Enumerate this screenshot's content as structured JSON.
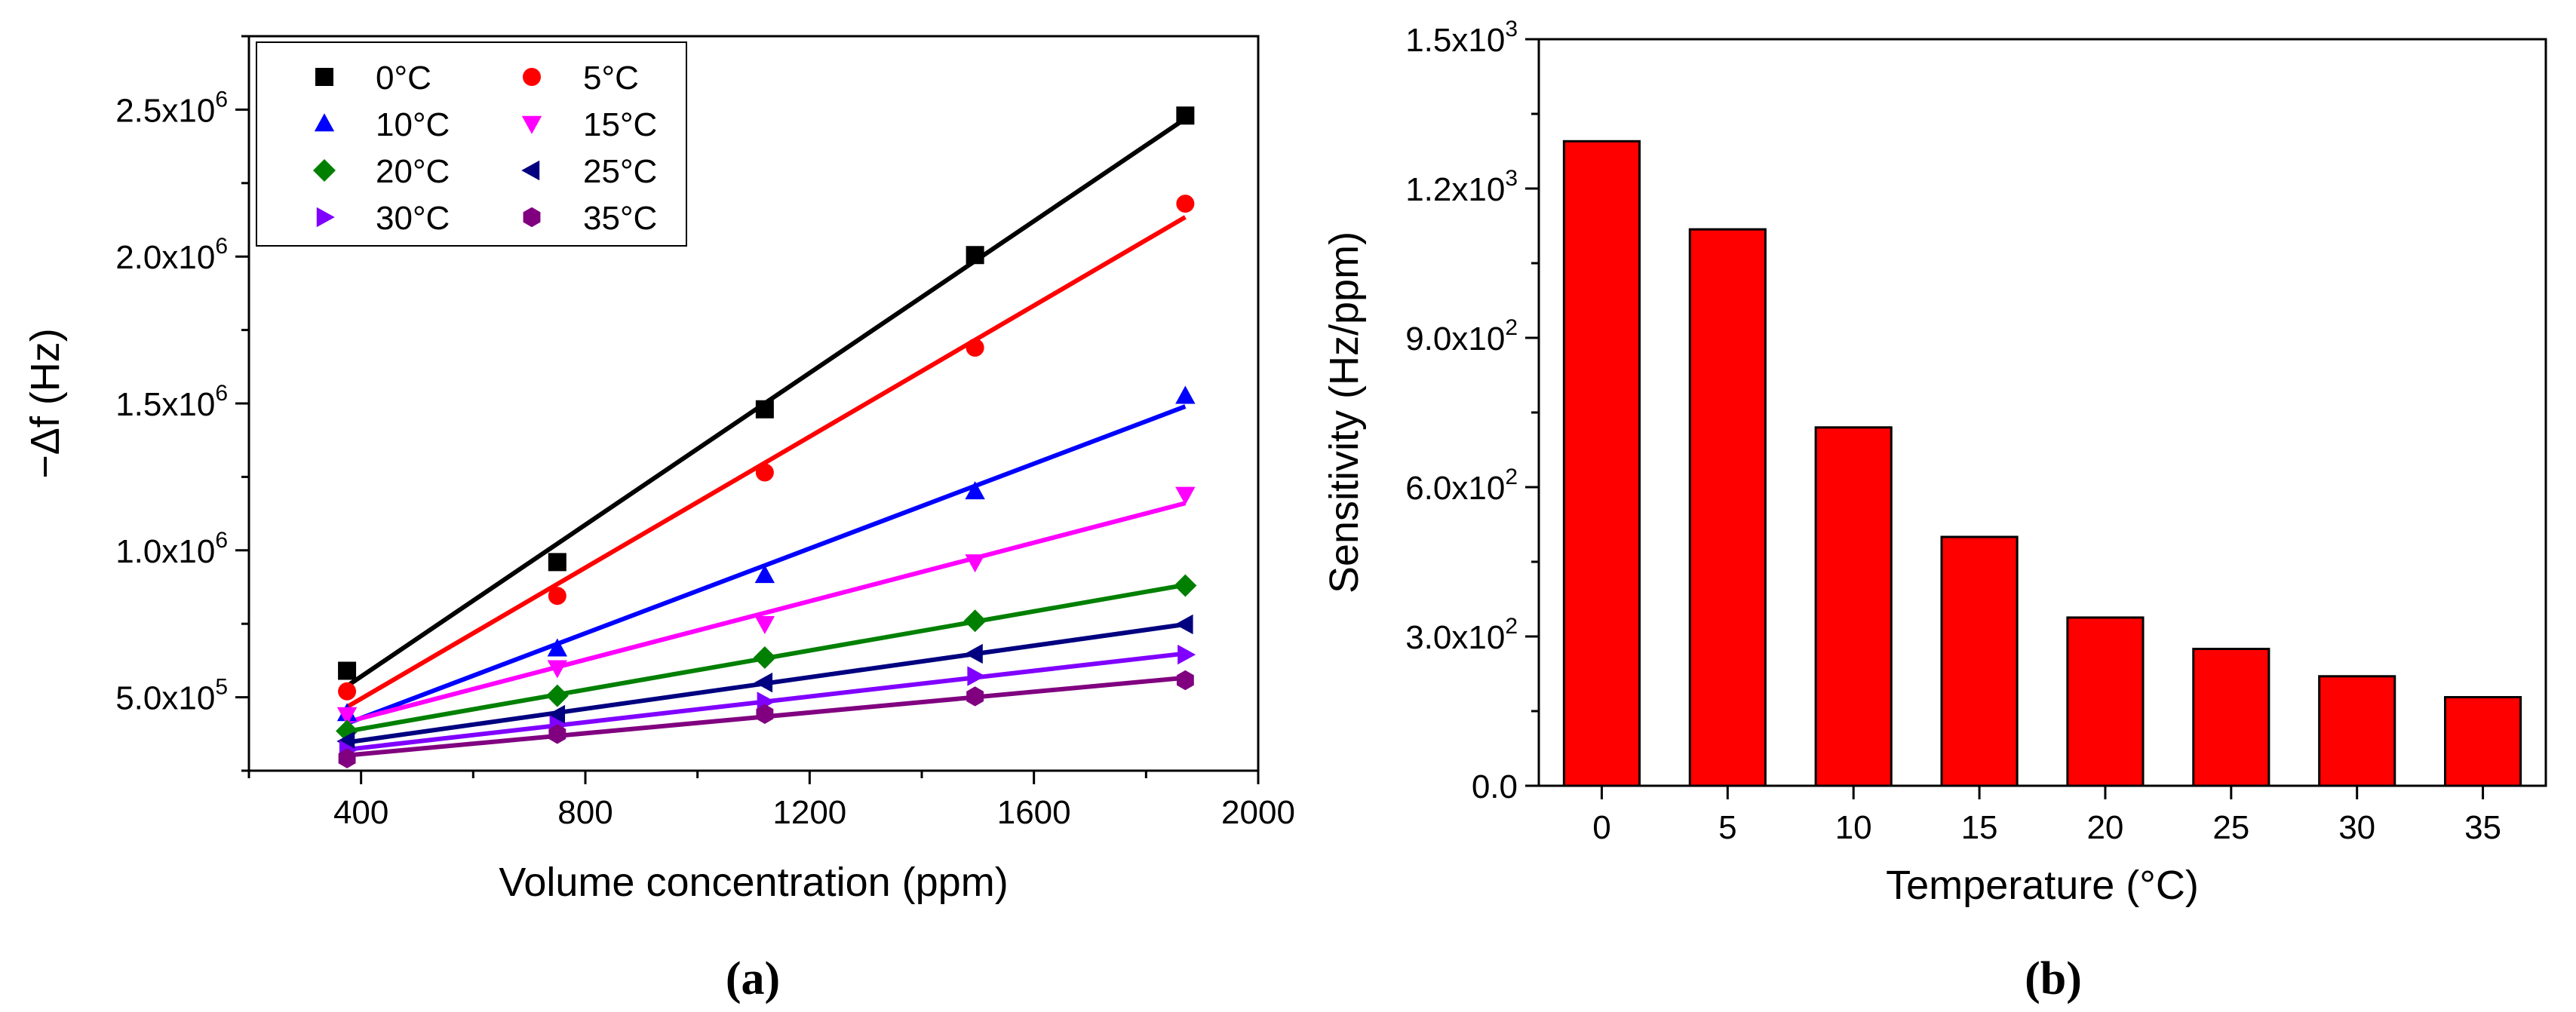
{
  "chart_data": [
    {
      "type": "scatter",
      "panel_label": "(a)",
      "xlabel": "Volume concentration (ppm)",
      "ylabel": "−Δf (Hz)",
      "xlim": [
        200,
        2000
      ],
      "ylim": [
        250000,
        2750000
      ],
      "x_ticks": [
        400,
        800,
        1200,
        1600,
        2000
      ],
      "y_ticks": [
        {
          "value": 500000,
          "mant": "5.0x10",
          "exp": "5"
        },
        {
          "value": 1000000,
          "mant": "1.0x10",
          "exp": "6"
        },
        {
          "value": 1500000,
          "mant": "1.5x10",
          "exp": "6"
        },
        {
          "value": 2000000,
          "mant": "2.0x10",
          "exp": "6"
        },
        {
          "value": 2500000,
          "mant": "2.5x10",
          "exp": "6"
        }
      ],
      "fit_lines": true,
      "legend_position": "top-left",
      "x": [
        375,
        750,
        1120,
        1495,
        1870
      ],
      "series": [
        {
          "name": "0°C",
          "color": "#000000",
          "marker": "square",
          "values": [
            590000,
            960000,
            1480000,
            2005000,
            2480000
          ]
        },
        {
          "name": "5°C",
          "color": "#ff0000",
          "marker": "circle",
          "values": [
            520000,
            845000,
            1265000,
            1690000,
            2180000
          ]
        },
        {
          "name": "10°C",
          "color": "#0000ff",
          "marker": "triangle-up",
          "values": [
            445000,
            665000,
            915000,
            1200000,
            1525000
          ]
        },
        {
          "name": "15°C",
          "color": "#ff00ff",
          "marker": "triangle-down",
          "values": [
            440000,
            600000,
            750000,
            960000,
            1190000
          ]
        },
        {
          "name": "20°C",
          "color": "#008000",
          "marker": "diamond",
          "values": [
            385000,
            505000,
            635000,
            760000,
            880000
          ]
        },
        {
          "name": "25°C",
          "color": "#000080",
          "marker": "triangle-left",
          "values": [
            350000,
            440000,
            550000,
            648000,
            748000
          ]
        },
        {
          "name": "30°C",
          "color": "#8000ff",
          "marker": "triangle-right",
          "values": [
            320000,
            405000,
            485000,
            572000,
            645000
          ]
        },
        {
          "name": "35°C",
          "color": "#800080",
          "marker": "hexagon",
          "values": [
            292000,
            375000,
            443000,
            503000,
            558000
          ]
        }
      ]
    },
    {
      "type": "bar",
      "panel_label": "(b)",
      "xlabel": "Temperature (°C)",
      "ylabel": "Sensitivity (Hz/ppm)",
      "ylim": [
        0,
        1500
      ],
      "categories": [
        "0",
        "5",
        "10",
        "15",
        "20",
        "25",
        "30",
        "35"
      ],
      "values": [
        1295,
        1118,
        720,
        500,
        338,
        275,
        220,
        178
      ],
      "bar_color": "#ff0000",
      "y_ticks": [
        {
          "value": 0,
          "mant": "0.0",
          "exp": ""
        },
        {
          "value": 300,
          "mant": "3.0x10",
          "exp": "2"
        },
        {
          "value": 600,
          "mant": "6.0x10",
          "exp": "2"
        },
        {
          "value": 900,
          "mant": "9.0x10",
          "exp": "2"
        },
        {
          "value": 1200,
          "mant": "1.2x10",
          "exp": "3"
        },
        {
          "value": 1500,
          "mant": "1.5x10",
          "exp": "3"
        }
      ]
    }
  ]
}
